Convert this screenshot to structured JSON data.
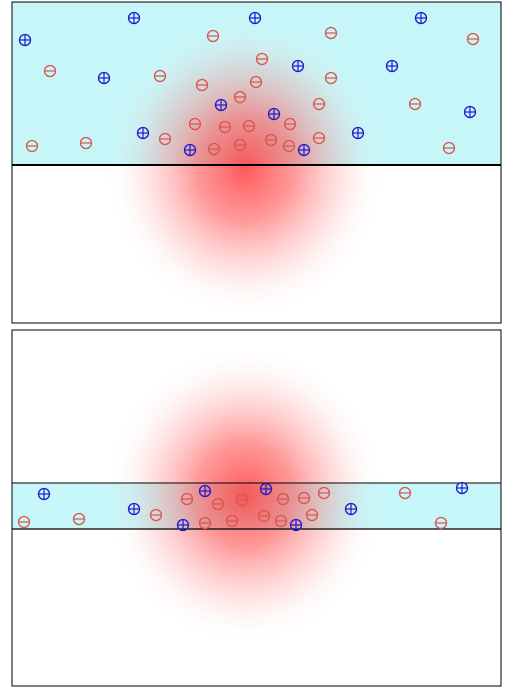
{
  "symbols": {
    "positive": "+",
    "negative": "−"
  },
  "colors": {
    "fluid": "#c6f6f8",
    "frame": "#000000",
    "positive_charge": "#1c1ccd",
    "negative_charge": "#d8564e",
    "field_glow": "#ff3b3b"
  }
}
